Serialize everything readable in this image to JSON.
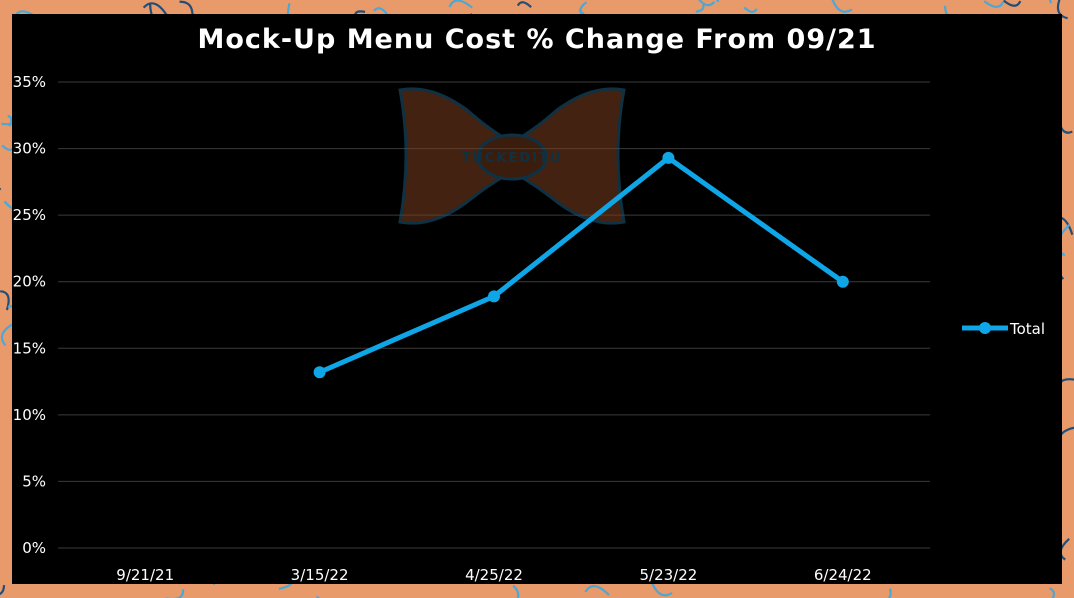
{
  "colors": {
    "background": "#000000",
    "series_line": "#0fa6e8",
    "gridline": "#3a3a3a",
    "text": "#ffffff",
    "border_pattern_base": "#e89a6a",
    "border_pattern_lines": "#4aa8d8"
  },
  "watermark": {
    "icon": "bow-tie-logo-icon",
    "text": "TUCKEDITU"
  },
  "chart_data": {
    "type": "line",
    "title": "Mock-Up Menu Cost % Change From 09/21",
    "categories": [
      "9/21/21",
      "3/15/22",
      "4/25/22",
      "5/23/22",
      "6/24/22"
    ],
    "series": [
      {
        "name": "Total",
        "values": [
          null,
          13.2,
          18.9,
          29.3,
          20.0
        ]
      }
    ],
    "y_ticks": [
      "0%",
      "5%",
      "10%",
      "15%",
      "20%",
      "25%",
      "30%",
      "35%"
    ],
    "ylim": [
      0,
      35
    ],
    "y_tick_step": 5,
    "grid": true,
    "legend_position": "right"
  }
}
